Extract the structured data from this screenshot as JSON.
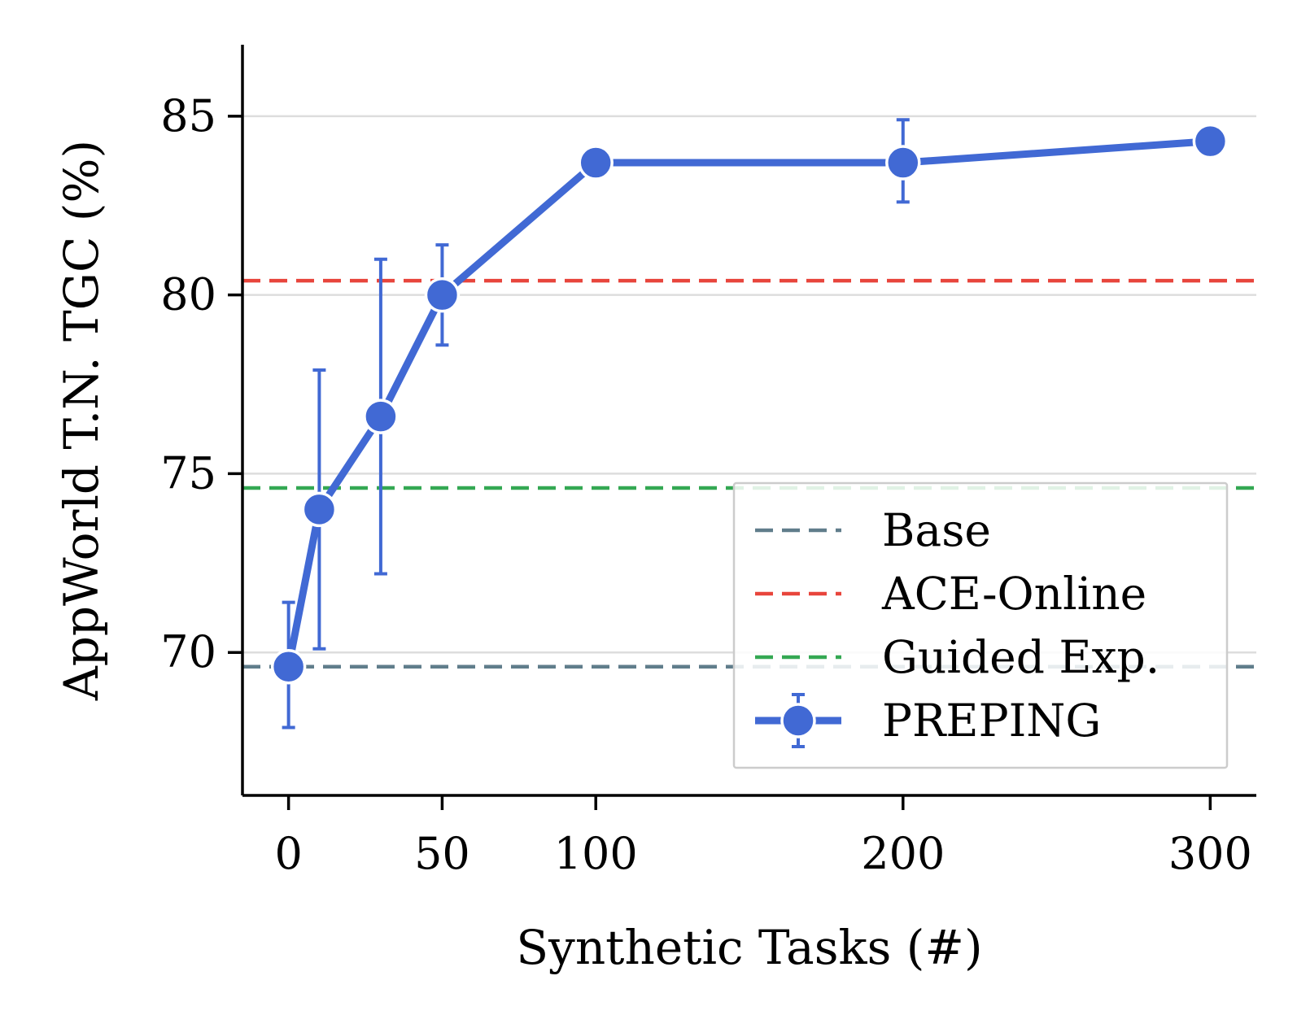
{
  "chart_data": {
    "type": "line",
    "xlabel": "Synthetic Tasks (#)",
    "ylabel": "AppWorld T.N. TGC (%)",
    "xlim": [
      -15,
      315
    ],
    "ylim": [
      66,
      87
    ],
    "xticks": [
      0,
      50,
      100,
      200,
      300
    ],
    "yticks": [
      70,
      75,
      80,
      85
    ],
    "grid": "horizontal",
    "legend_position": "lower-right",
    "reference_lines": [
      {
        "name": "Base",
        "y": 69.6,
        "color": "#607d8b",
        "style": "dashed"
      },
      {
        "name": "ACE-Online",
        "y": 80.4,
        "color": "#e8453c",
        "style": "dashed"
      },
      {
        "name": "Guided Exp.",
        "y": 74.6,
        "color": "#34a853",
        "style": "dashed"
      }
    ],
    "series": [
      {
        "name": "PREPING",
        "color": "#4169d4",
        "x": [
          0,
          10,
          30,
          50,
          100,
          200,
          300
        ],
        "y": [
          69.6,
          74.0,
          76.6,
          80.0,
          83.7,
          83.7,
          84.3
        ],
        "err_low": [
          67.9,
          70.1,
          72.2,
          78.6,
          83.7,
          82.6,
          84.3
        ],
        "err_high": [
          71.4,
          77.9,
          81.0,
          81.4,
          83.7,
          84.9,
          84.3
        ]
      }
    ]
  }
}
